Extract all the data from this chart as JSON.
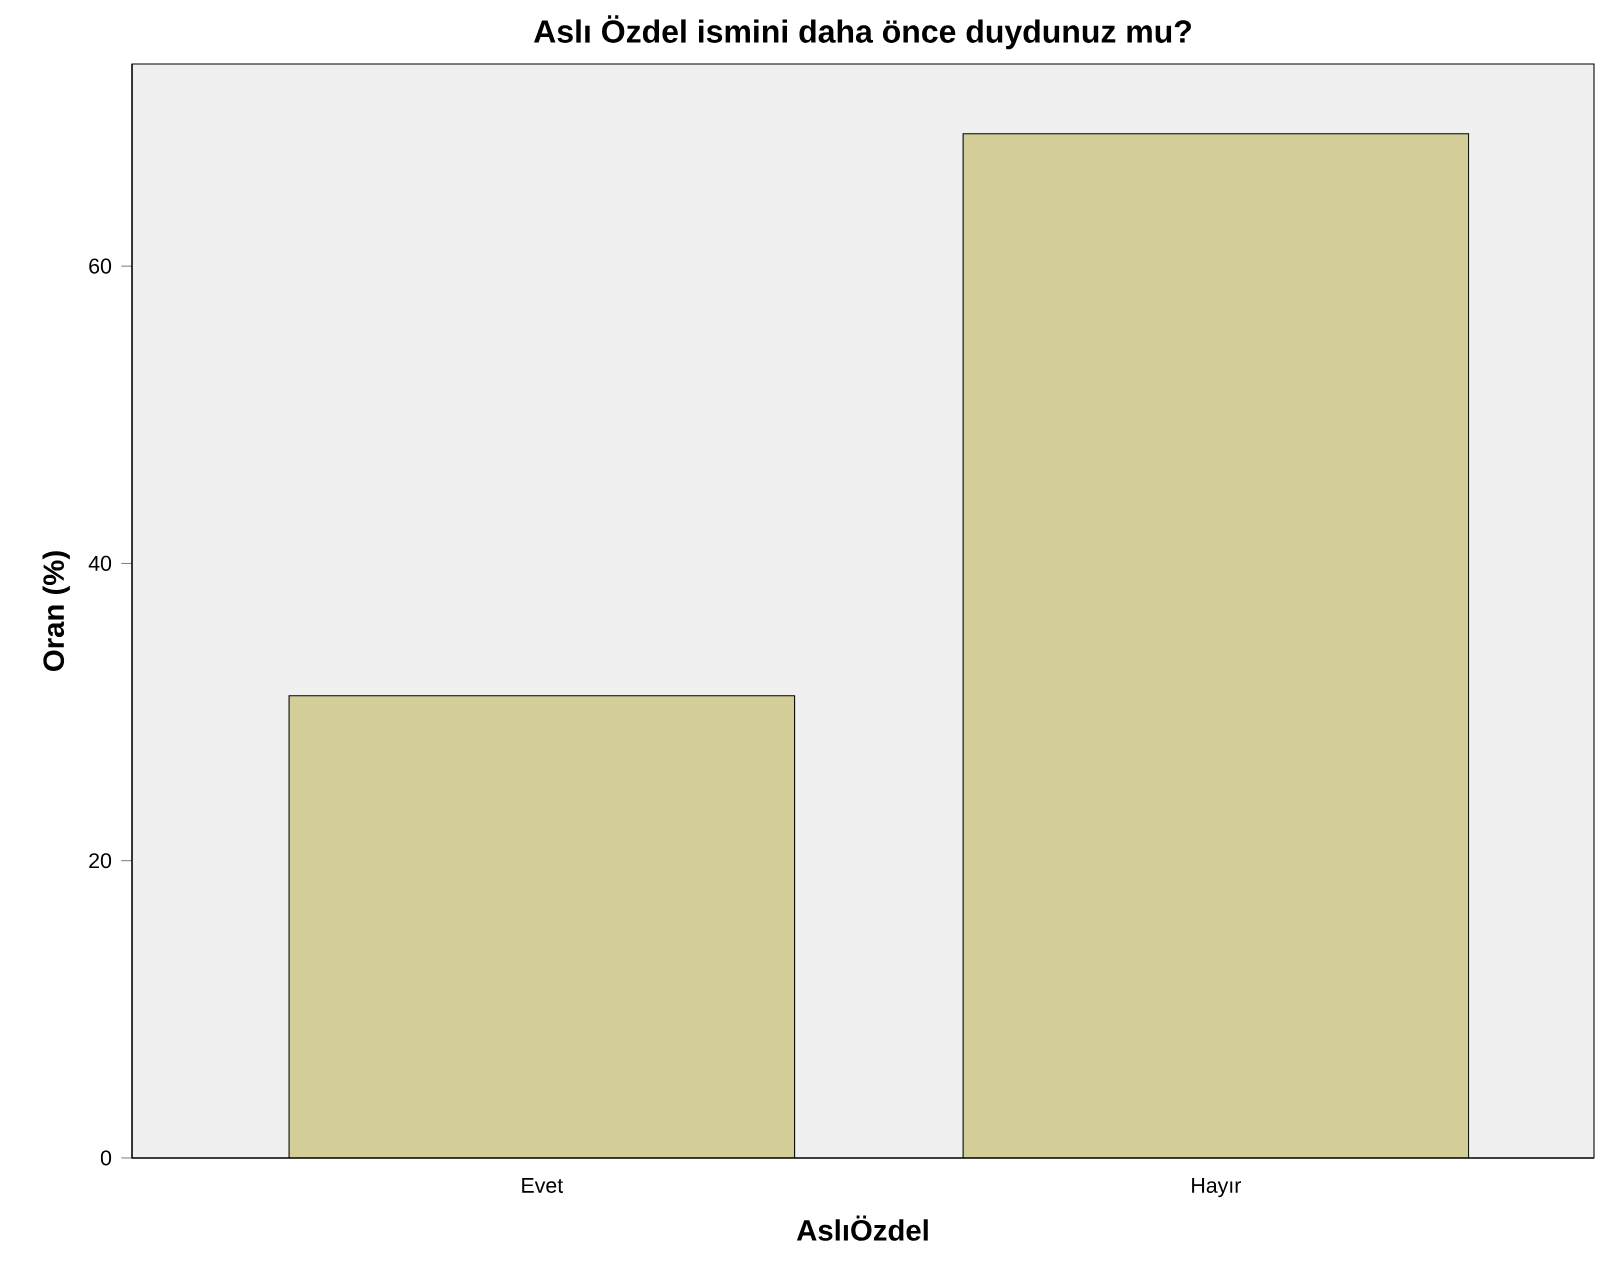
{
  "chart_data": {
    "type": "bar",
    "title": "Aslı Özdel ismini daha önce duydunuz mu?",
    "xlabel": "AslıÖzdel",
    "ylabel": "Oran (%)",
    "categories": [
      "Evet",
      "Hayır"
    ],
    "values": [
      31.1,
      68.9
    ],
    "color": "#d3ce97",
    "ylim": [
      0,
      73.6
    ],
    "yticks": [
      0,
      20,
      40,
      60
    ]
  }
}
